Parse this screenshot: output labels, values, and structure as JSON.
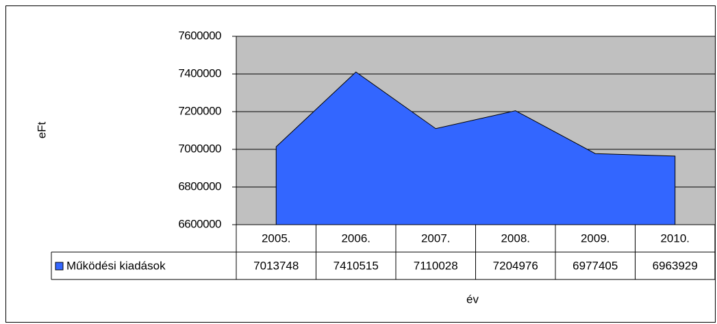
{
  "chart_data": {
    "type": "area",
    "x_label": "év",
    "y_label": "eFt",
    "categories": [
      "2005.",
      "2006.",
      "2007.",
      "2008.",
      "2009.",
      "2010."
    ],
    "series": [
      {
        "name": "Működési kiadások",
        "color": "#3366ff",
        "values": [
          7013748,
          7410515,
          7110028,
          7204976,
          6977405,
          6963929
        ]
      }
    ],
    "ylim": [
      6600000,
      7600000
    ],
    "yticks": [
      6600000,
      6800000,
      7000000,
      7200000,
      7400000,
      7600000
    ],
    "grid": true,
    "plot_background": "#c0c0c0",
    "data_table": true
  }
}
